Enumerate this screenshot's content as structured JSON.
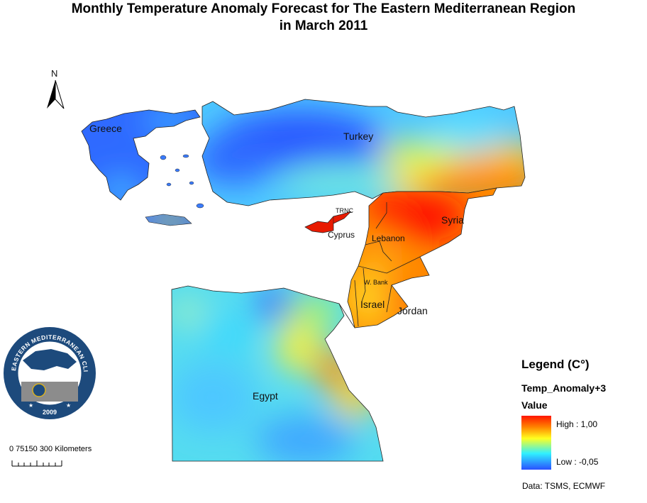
{
  "title": {
    "line1": "Monthly Temperature Anomaly Forecast for  The Eastern Mediterranean Region",
    "line2": "in March 2011"
  },
  "north_arrow": {
    "label": "N"
  },
  "country_labels": {
    "greece": "Greece",
    "turkey": "Turkey",
    "trnc": "TRNC",
    "cyprus": "Cyprus",
    "syria": "Syria",
    "lebanon": "Lebanon",
    "west_bank": "W. Bank",
    "israel": "Israel",
    "jordan": "Jordan",
    "egypt": "Egypt"
  },
  "logo": {
    "text": "EASTERN MEDITERRANEAN CLIMATE CENTRE",
    "year": "2009"
  },
  "scale_bar": {
    "label": "0  75150   300 Kilometers"
  },
  "legend": {
    "title": "Legend (C°)",
    "layer": "Temp_Anomaly+3",
    "field": "Value",
    "high": "High : 1,00",
    "low": "Low : -0,05"
  },
  "colors": {
    "high": "#ff1500",
    "mid_high": "#ff8a00",
    "mid": "#ffff20",
    "mid_low": "#30f0ff",
    "low": "#2a50ff"
  },
  "credit": "Data:  TSMS, ECMWF"
}
